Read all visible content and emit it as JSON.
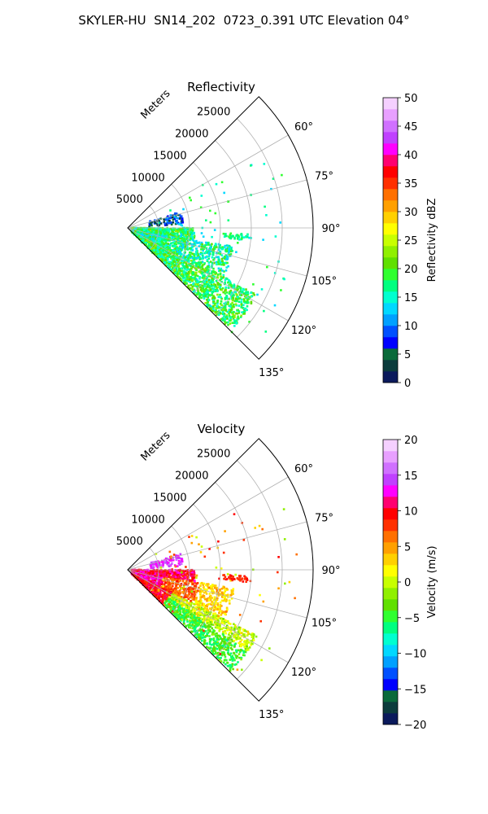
{
  "title": "SKYLER-HU  SN14_202  0723_0.391 UTC Elevation 04°",
  "chart_data": [
    {
      "type": "polar-sector",
      "title": "Reflectivity",
      "radial_label": "Meters",
      "radial_ticks": [
        "5000",
        "10000",
        "15000",
        "20000",
        "25000"
      ],
      "radial_values": [
        5000,
        10000,
        15000,
        20000,
        25000
      ],
      "rmax": 30000,
      "angle_range_deg": [
        45,
        135
      ],
      "angle_ticks": [
        "60°",
        "75°",
        "90°",
        "105°",
        "120°",
        "135°"
      ],
      "angle_values": [
        60,
        75,
        90,
        105,
        120,
        135
      ],
      "colorbar": {
        "label": "Reflectivity dBZ",
        "range": [
          0,
          50
        ],
        "ticks": [
          "0",
          "5",
          "10",
          "15",
          "20",
          "25",
          "30",
          "35",
          "40",
          "45",
          "50"
        ],
        "tick_values": [
          0,
          5,
          10,
          15,
          20,
          25,
          30,
          35,
          40,
          45,
          50
        ],
        "colors": [
          "#0b1a5c",
          "#0c3c3c",
          "#0a6a3a",
          "#0000ff",
          "#0050ff",
          "#00a0ff",
          "#00d8ff",
          "#00ffd0",
          "#00ff80",
          "#30ff30",
          "#60e000",
          "#90f000",
          "#c8ff00",
          "#ffff00",
          "#ffd000",
          "#ffa000",
          "#ff7000",
          "#ff3000",
          "#ff0000",
          "#ff0070",
          "#ff00ff",
          "#c040ff",
          "#d070ff",
          "#e8a0ff",
          "#f5d0ff"
        ]
      }
    },
    {
      "type": "polar-sector",
      "title": "Velocity",
      "radial_label": "Meters",
      "radial_ticks": [
        "5000",
        "10000",
        "15000",
        "20000",
        "25000"
      ],
      "radial_values": [
        5000,
        10000,
        15000,
        20000,
        25000
      ],
      "rmax": 30000,
      "angle_range_deg": [
        45,
        135
      ],
      "angle_ticks": [
        "60°",
        "75°",
        "90°",
        "105°",
        "120°",
        "135°"
      ],
      "angle_values": [
        60,
        75,
        90,
        105,
        120,
        135
      ],
      "colorbar": {
        "label": "Velocity (m/s)",
        "range": [
          -20,
          20
        ],
        "ticks": [
          "−20",
          "−15",
          "−10",
          "−5",
          "0",
          "5",
          "10",
          "15",
          "20"
        ],
        "tick_values": [
          -20,
          -15,
          -10,
          -5,
          0,
          5,
          10,
          15,
          20
        ],
        "colors": [
          "#0b1a5c",
          "#0c3c3c",
          "#0a6a3a",
          "#0000ff",
          "#0050ff",
          "#00a0ff",
          "#00d8ff",
          "#00ffd0",
          "#00ff80",
          "#30ff30",
          "#60e000",
          "#90f000",
          "#c8ff00",
          "#ffff00",
          "#ffd000",
          "#ffa000",
          "#ff7000",
          "#ff3000",
          "#ff0000",
          "#ff0070",
          "#ff00ff",
          "#c040ff",
          "#d070ff",
          "#e8a0ff",
          "#f5d0ff"
        ]
      }
    }
  ]
}
